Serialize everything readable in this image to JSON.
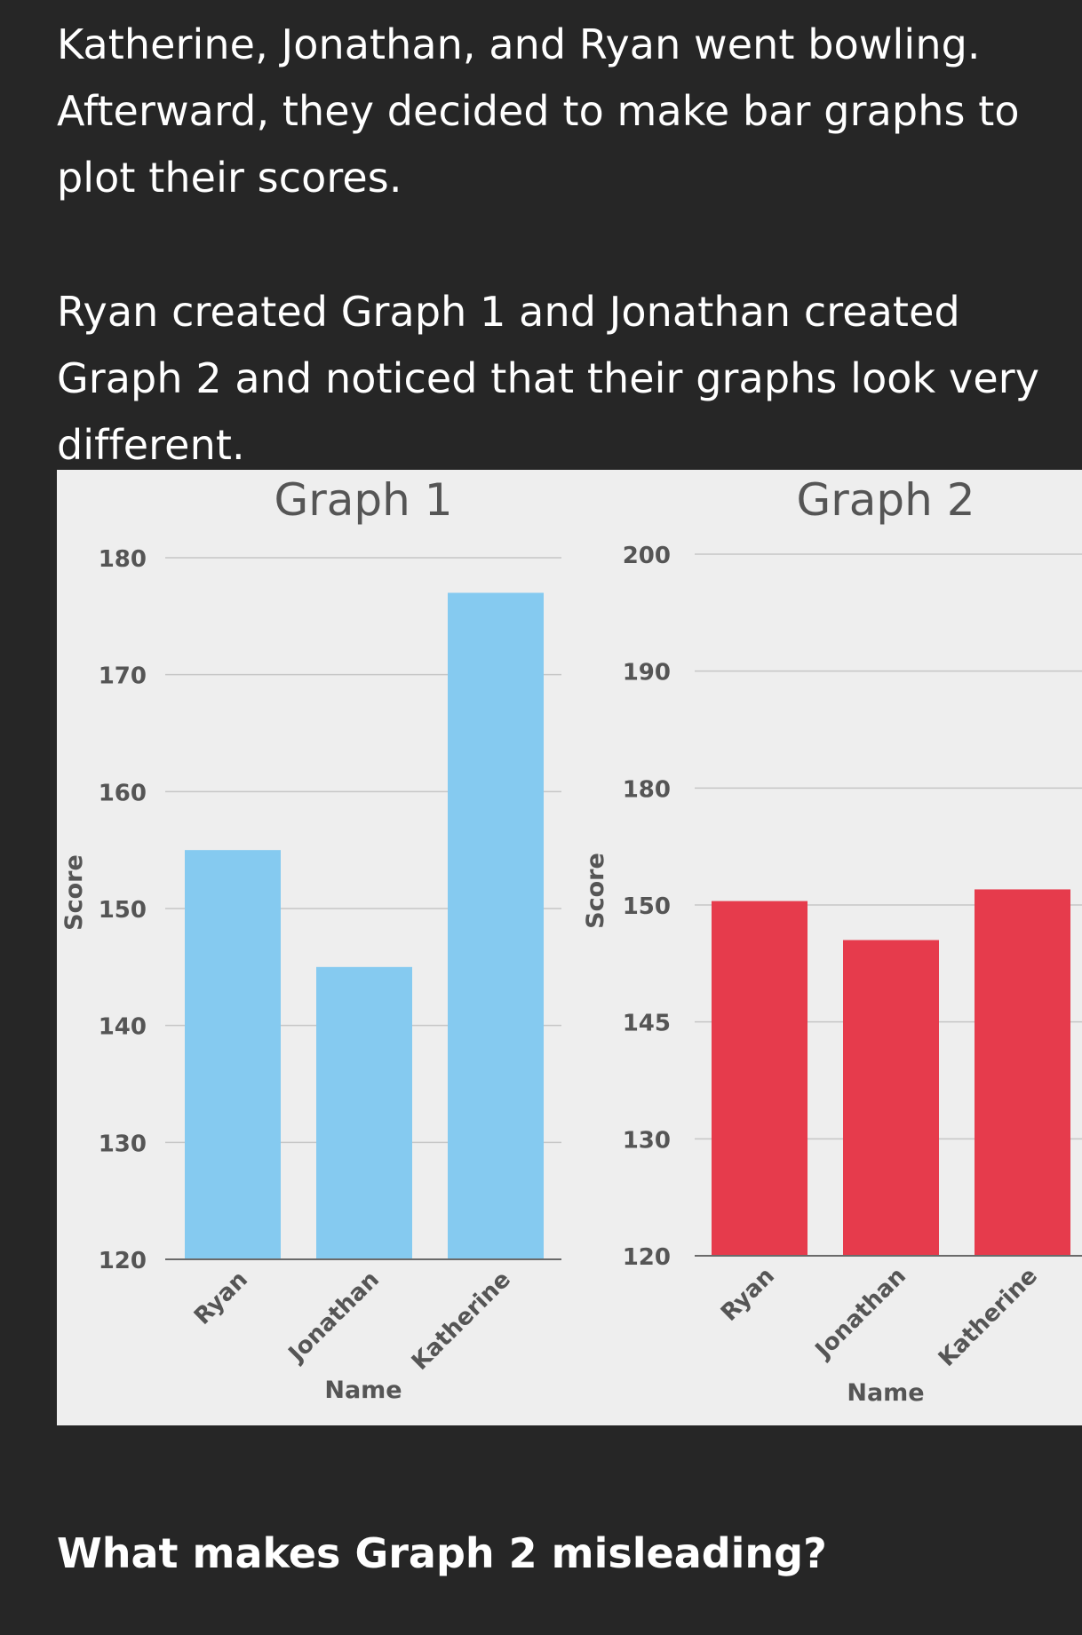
{
  "intro": {
    "paragraph1": "Katherine, Jonathan, and Ryan went bowling. Afterward, they decided to make bar graphs to plot their scores.",
    "paragraph2": "Ryan created Graph 1 and Jonathan created Graph 2 and noticed that their graphs look very different."
  },
  "question": "What makes Graph 2 misleading?",
  "chart_data": [
    {
      "type": "bar",
      "title": "Graph 1",
      "xlabel": "Name",
      "ylabel": "Score",
      "categories": [
        "Ryan",
        "Jonathan",
        "Katherine"
      ],
      "values": [
        155,
        145,
        177
      ],
      "ylim": [
        120,
        180
      ],
      "yticks": [
        "120",
        "130",
        "140",
        "150",
        "160",
        "170",
        "180"
      ],
      "color": "#85caf0",
      "grid": true
    },
    {
      "type": "bar",
      "title": "Graph 2",
      "xlabel": "Name",
      "ylabel": "Score",
      "categories": [
        "Ryan",
        "Jonathan",
        "Katherine"
      ],
      "values": [
        151,
        148.5,
        154
      ],
      "ylim": [
        120,
        200
      ],
      "yticks": [
        "120",
        "130",
        "145",
        "150",
        "180",
        "190",
        "200"
      ],
      "tick_values": [
        120,
        130,
        145,
        150,
        180,
        190,
        200
      ],
      "color": "#e63b4c",
      "grid": true
    }
  ]
}
